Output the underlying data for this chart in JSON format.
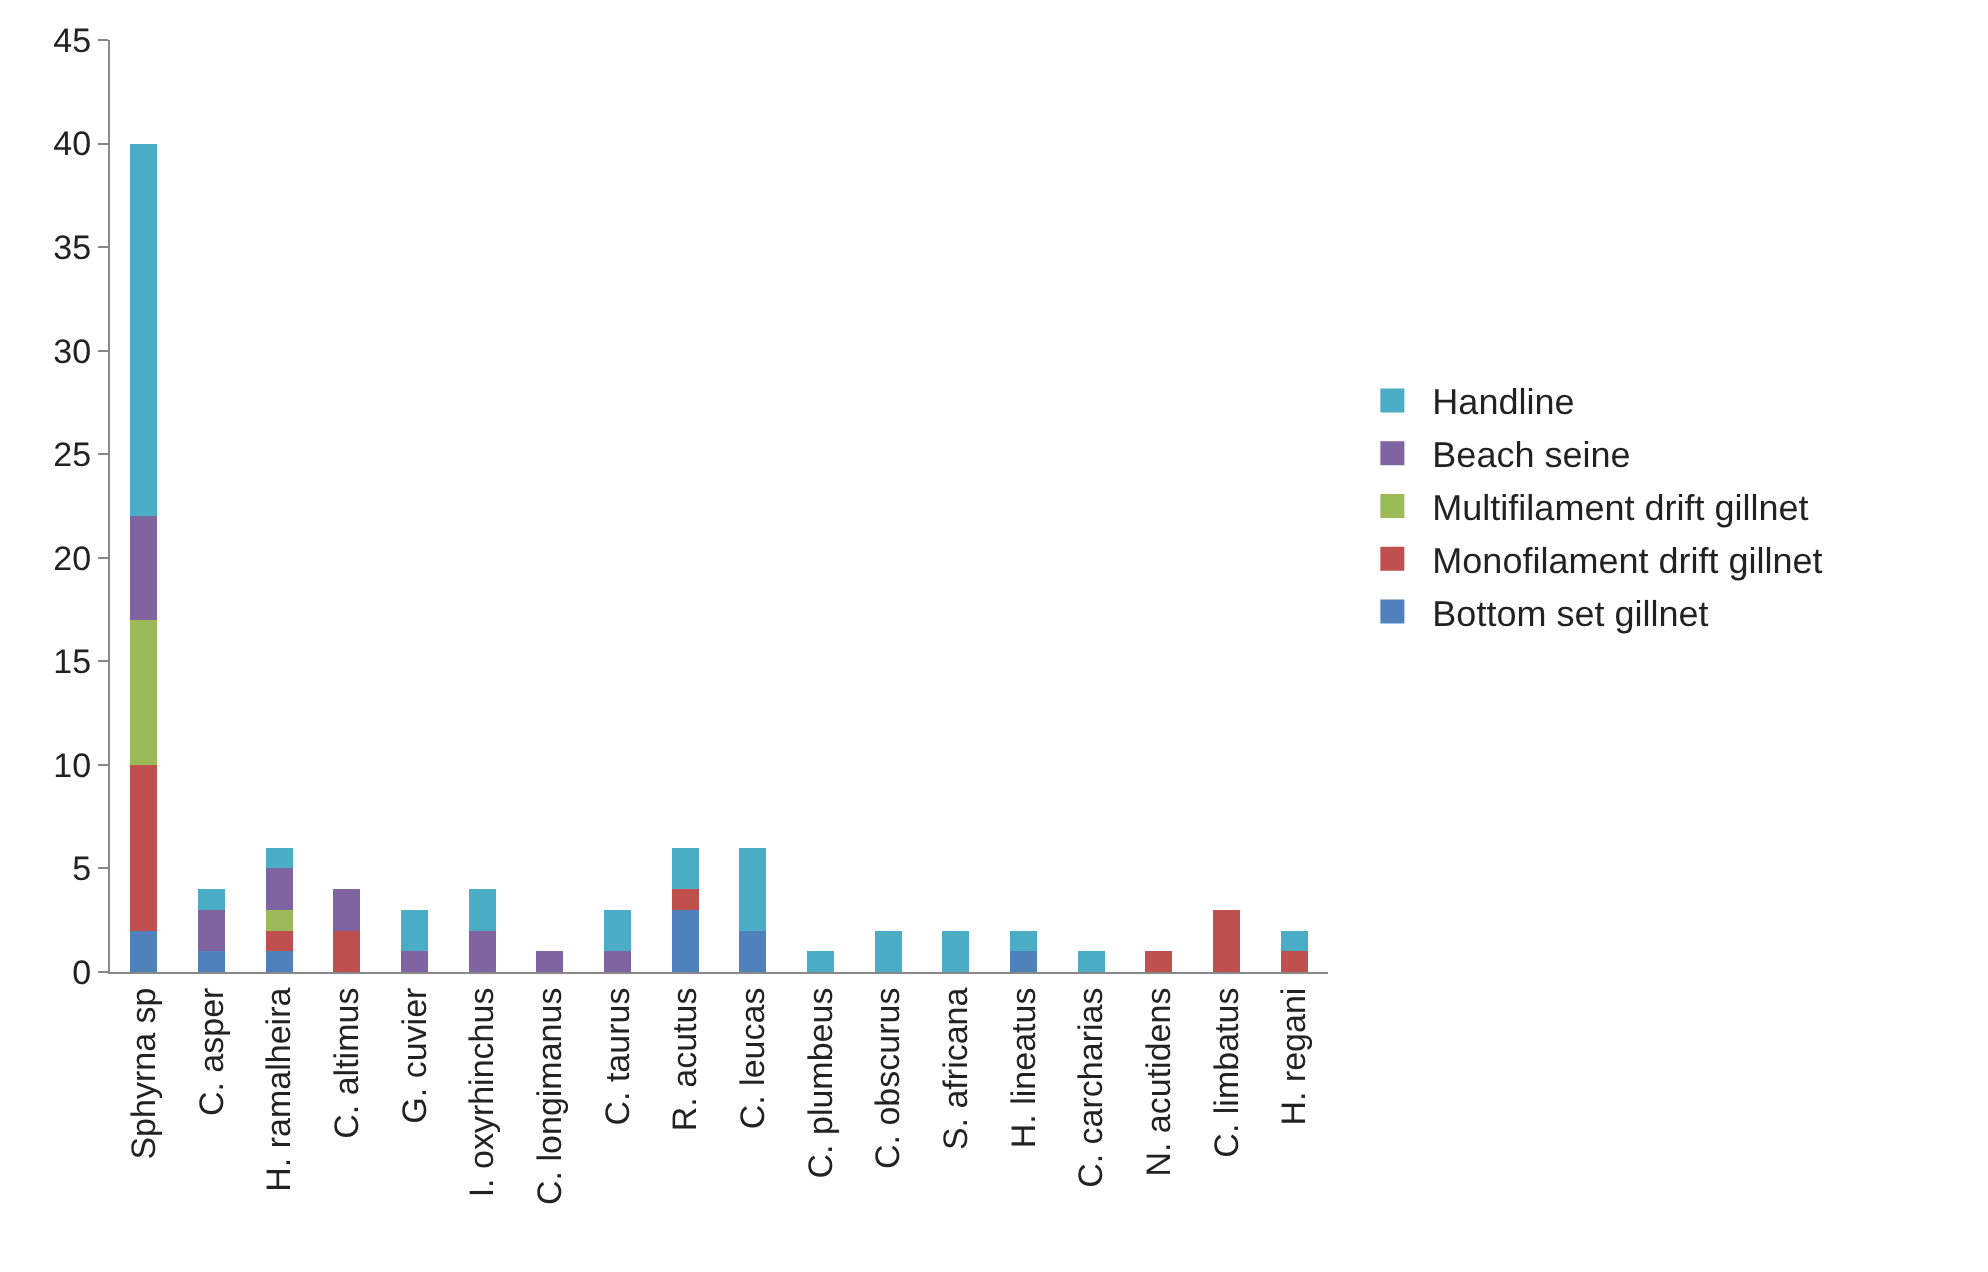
{
  "chart_data": {
    "type": "bar",
    "stacked": true,
    "categories": [
      "Sphyrna sp",
      "C. asper",
      "H. ramalheira",
      "C. altimus",
      "G. cuvier",
      "I. oxyrhinchus",
      "C. longimanus",
      "C. taurus",
      "R. acutus",
      "C. leucas",
      "C. plumbeus",
      "C. obscurus",
      "S. africana",
      "H. lineatus",
      "C. carcharias",
      "N. acutidens",
      "C. limbatus",
      "H. regani"
    ],
    "series": [
      {
        "name": "Bottom set gillnet",
        "color": "#4f81bd",
        "values": [
          2,
          1,
          1,
          0,
          0,
          0,
          0,
          0,
          3,
          2,
          0,
          0,
          0,
          1,
          0,
          0,
          0,
          0
        ]
      },
      {
        "name": "Monofilament drift gillnet",
        "color": "#c0504d",
        "values": [
          8,
          0,
          1,
          2,
          0,
          0,
          0,
          0,
          1,
          0,
          0,
          0,
          0,
          0,
          0,
          1,
          3,
          1
        ]
      },
      {
        "name": "Multifilament drift gillnet",
        "color": "#9bbb59",
        "values": [
          7,
          0,
          1,
          0,
          0,
          0,
          0,
          0,
          0,
          0,
          0,
          0,
          0,
          0,
          0,
          0,
          0,
          0
        ]
      },
      {
        "name": "Beach seine",
        "color": "#8064a2",
        "values": [
          5,
          2,
          2,
          2,
          1,
          2,
          1,
          1,
          0,
          0,
          0,
          0,
          0,
          0,
          0,
          0,
          0,
          0
        ]
      },
      {
        "name": "Handline",
        "color": "#4bacc6",
        "values": [
          18,
          1,
          1,
          0,
          2,
          2,
          0,
          2,
          2,
          4,
          1,
          2,
          2,
          1,
          1,
          0,
          0,
          1
        ]
      }
    ],
    "ylim": [
      0,
      45
    ],
    "yticks": [
      0,
      5,
      10,
      15,
      20,
      25,
      30,
      35,
      40,
      45
    ],
    "legend": "right"
  }
}
